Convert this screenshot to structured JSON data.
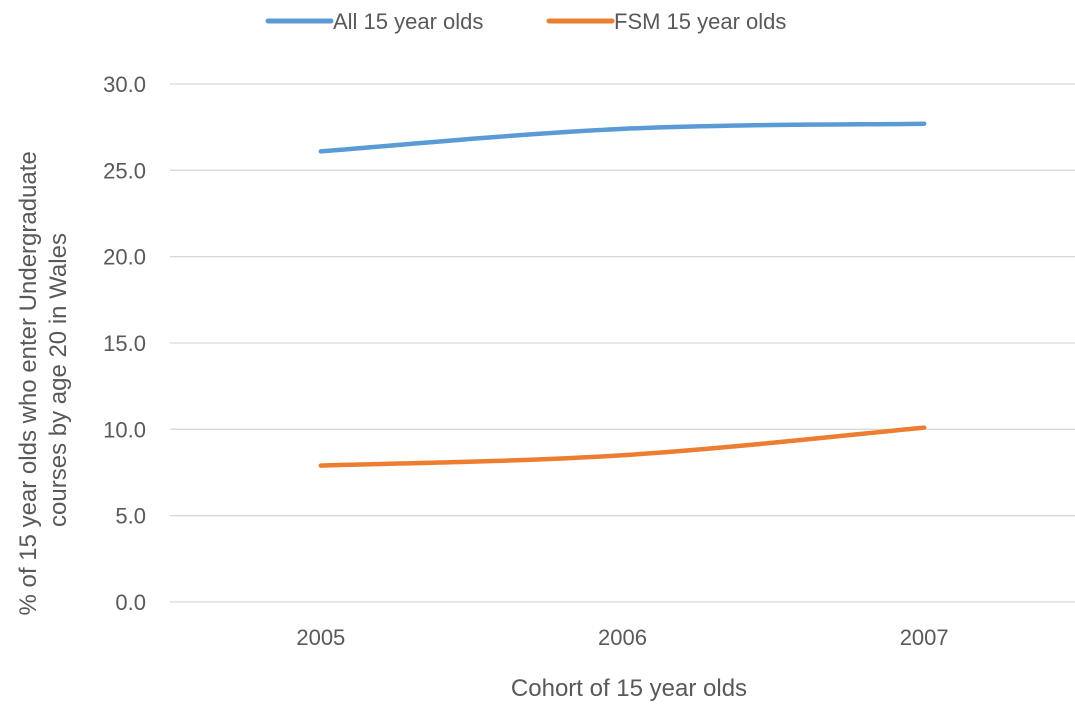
{
  "chart_data": {
    "type": "line",
    "title": "",
    "xlabel": "Cohort of 15 year olds",
    "ylabel_line1": "% of 15 year olds who enter Undergraduate",
    "ylabel_line2": "courses by age 20 in Wales",
    "categories": [
      "2005",
      "2006",
      "2007"
    ],
    "ylim": [
      0,
      30
    ],
    "yticks": [
      "0.0",
      "5.0",
      "10.0",
      "15.0",
      "20.0",
      "25.0",
      "30.0"
    ],
    "grid": true,
    "legend_position": "top",
    "series": [
      {
        "name": "All 15 year olds",
        "values": [
          26.1,
          27.4,
          27.7
        ],
        "color": "#5b9bd5"
      },
      {
        "name": "FSM 15 year olds",
        "values": [
          7.9,
          8.5,
          10.1
        ],
        "color": "#ed7d31"
      }
    ]
  },
  "colors": {
    "grid": "#d9d9d9",
    "text": "#595959"
  }
}
